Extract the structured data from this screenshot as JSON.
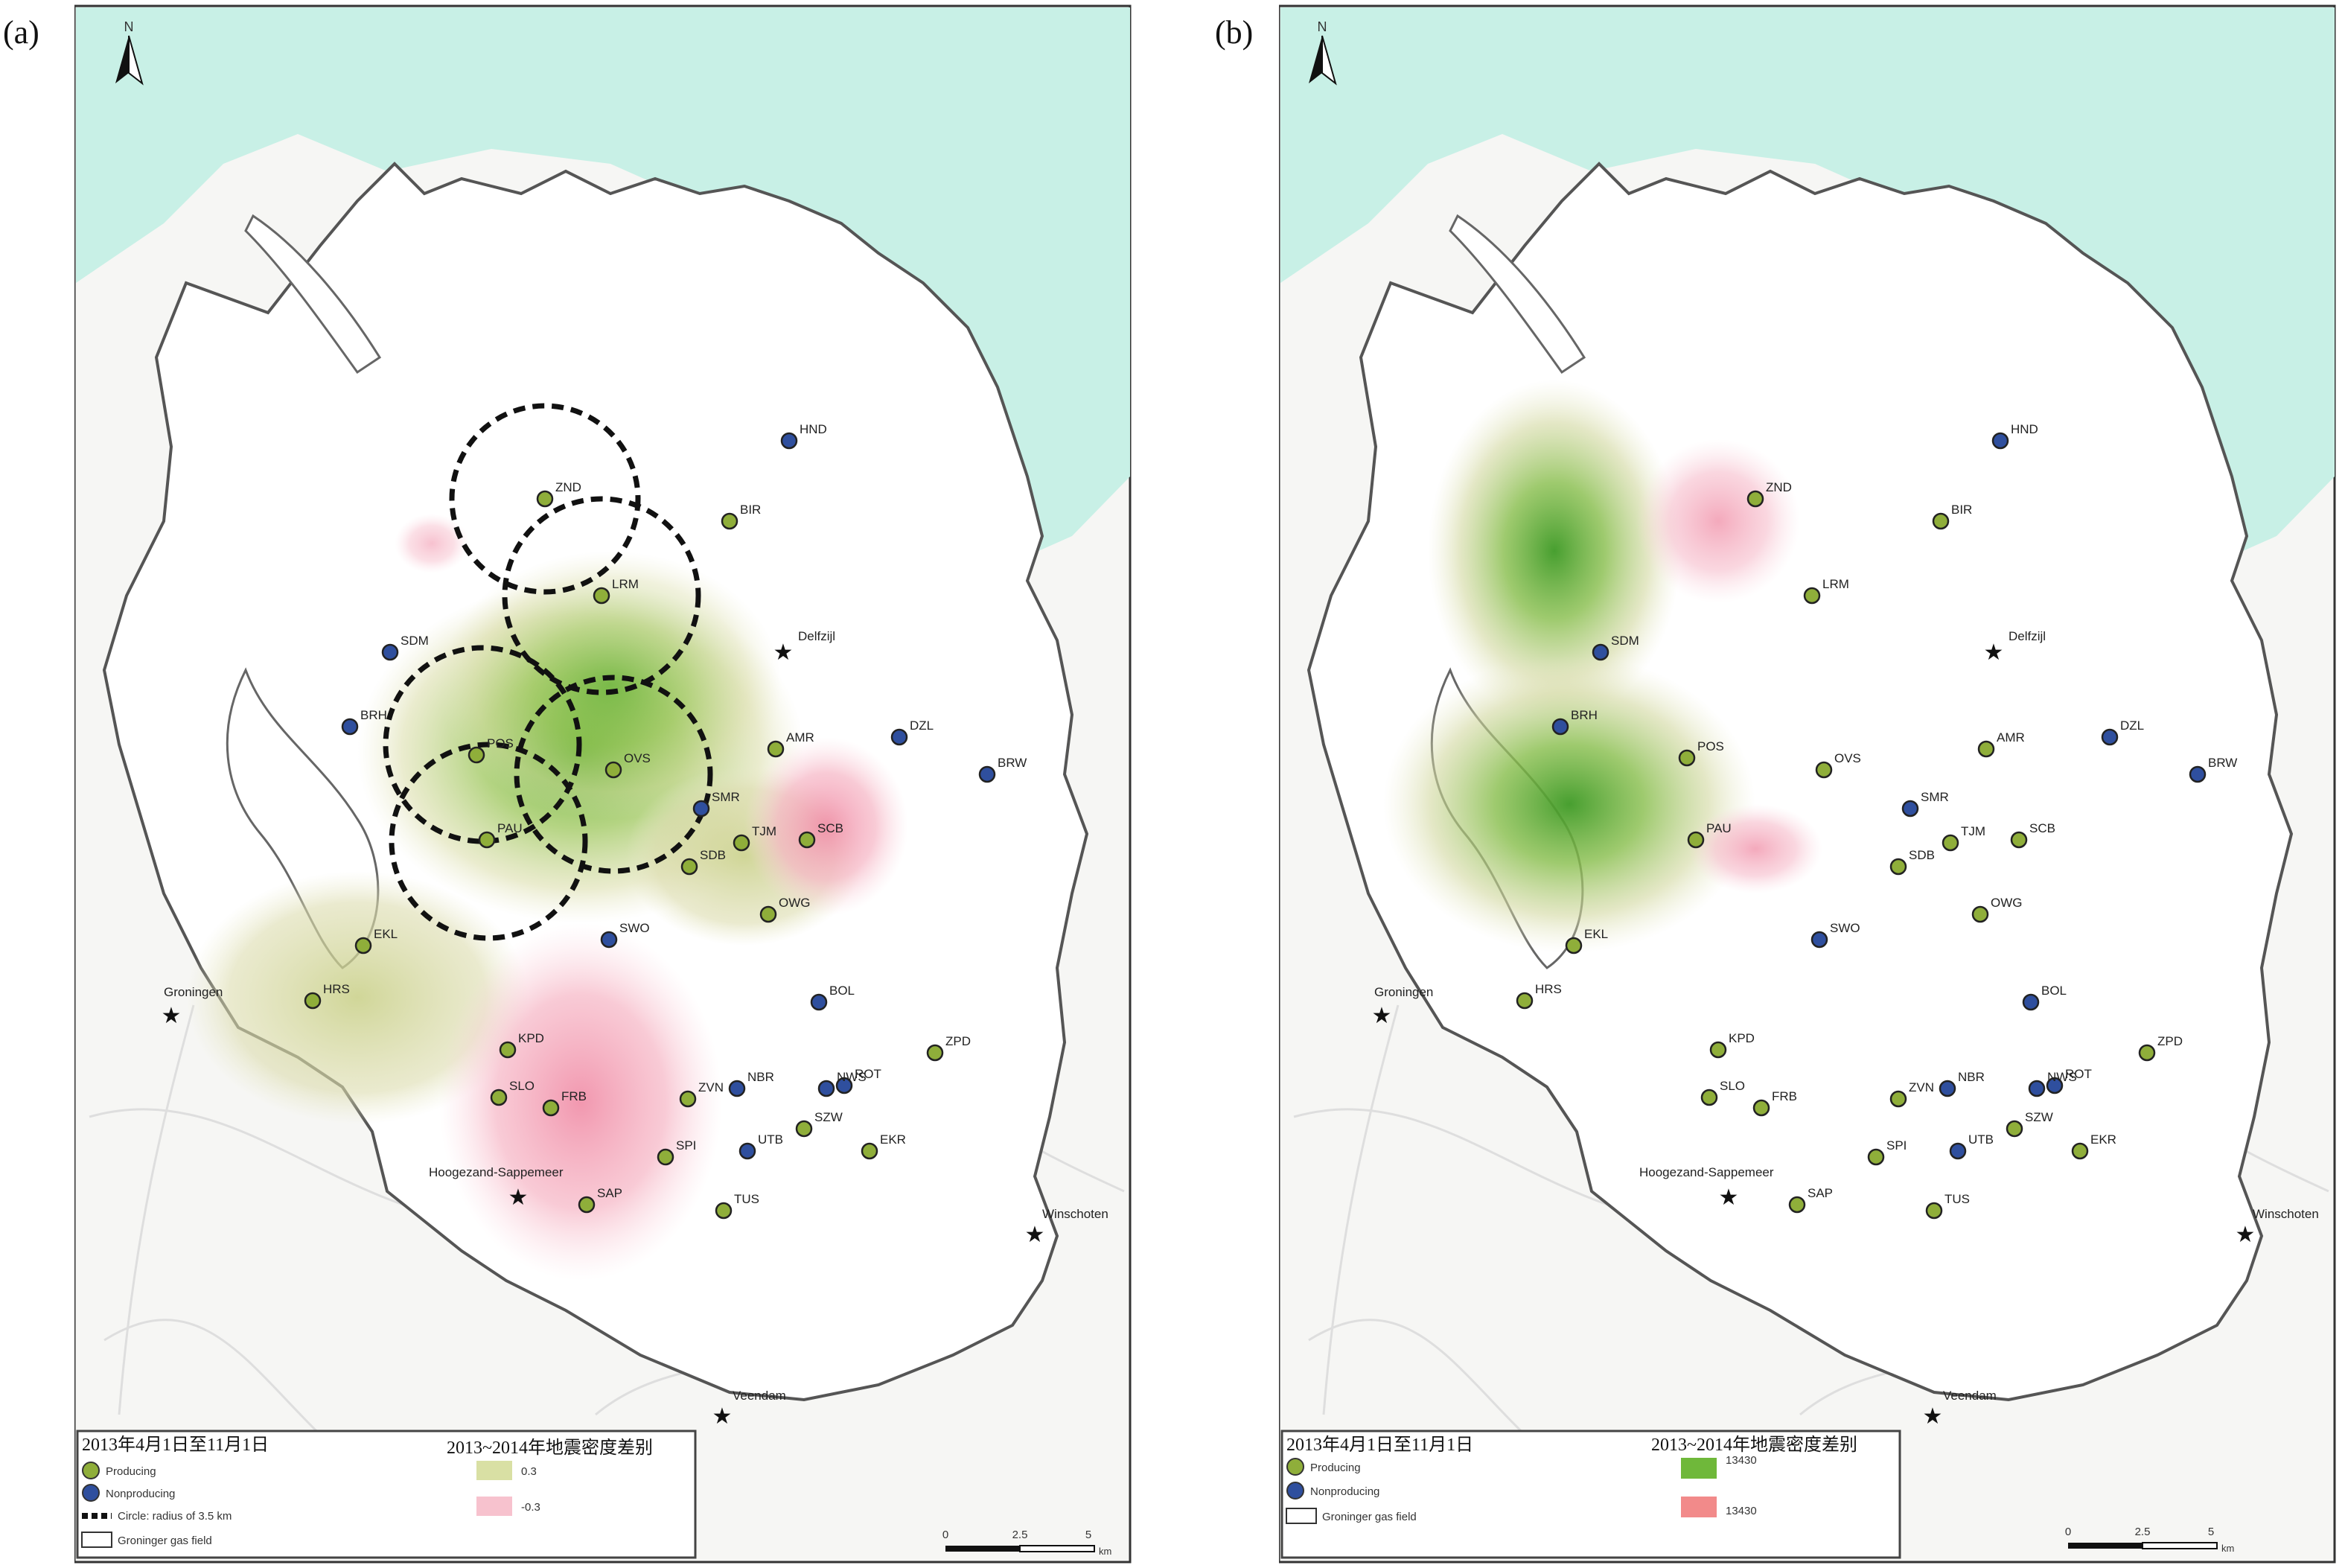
{
  "panels": [
    {
      "label": "(a)",
      "legend": {
        "left_title": "2013年4月1日至11月1日",
        "right_title": "2013~2014年地震密度差别",
        "items": [
          "Producing",
          "Nonproducing",
          "Circle: radius of 3.5 km",
          "Groninger gas field"
        ],
        "density_items": [
          "0.3",
          "-0.3"
        ],
        "scale_ticks": [
          "0",
          "2.5",
          "5"
        ],
        "scale_unit": "km"
      }
    },
    {
      "label": "(b)",
      "legend": {
        "left_title": "2013年4月1日至11月1日",
        "right_title": "2013~2014年地震密度差别",
        "items": [
          "Producing",
          "Nonproducing",
          "Groninger gas field"
        ],
        "density_items": [
          "13430",
          "13430"
        ],
        "scale_ticks": [
          "0",
          "2.5",
          "5"
        ],
        "scale_unit": "km"
      }
    }
  ],
  "north_symbol": "N",
  "cities": [
    "Groningen",
    "Hoogezand-Sappemeer",
    "Delfzijl",
    "Winschoten",
    "Veendam"
  ],
  "stations": [
    {
      "code": "HND",
      "status": "nonproducing"
    },
    {
      "code": "ZND",
      "status": "producing"
    },
    {
      "code": "BIR",
      "status": "producing"
    },
    {
      "code": "LRM",
      "status": "producing"
    },
    {
      "code": "SDM",
      "status": "nonproducing"
    },
    {
      "code": "BRH",
      "status": "nonproducing"
    },
    {
      "code": "POS",
      "status": "producing"
    },
    {
      "code": "OVS",
      "status": "producing"
    },
    {
      "code": "AMR",
      "status": "producing"
    },
    {
      "code": "DZL",
      "status": "nonproducing"
    },
    {
      "code": "BRW",
      "status": "nonproducing"
    },
    {
      "code": "SMR",
      "status": "nonproducing"
    },
    {
      "code": "PAU",
      "status": "producing"
    },
    {
      "code": "TJM",
      "status": "producing"
    },
    {
      "code": "SCB",
      "status": "producing"
    },
    {
      "code": "SDB",
      "status": "producing"
    },
    {
      "code": "OWG",
      "status": "producing"
    },
    {
      "code": "SWO",
      "status": "nonproducing"
    },
    {
      "code": "EKL",
      "status": "producing"
    },
    {
      "code": "HRS",
      "status": "producing"
    },
    {
      "code": "BOL",
      "status": "nonproducing"
    },
    {
      "code": "KPD",
      "status": "producing"
    },
    {
      "code": "ZPD",
      "status": "producing"
    },
    {
      "code": "SLO",
      "status": "producing"
    },
    {
      "code": "FRB",
      "status": "producing"
    },
    {
      "code": "ZVN",
      "status": "producing"
    },
    {
      "code": "NBR",
      "status": "nonproducing"
    },
    {
      "code": "ROT",
      "status": "nonproducing"
    },
    {
      "code": "NWS",
      "status": "nonproducing"
    },
    {
      "code": "SZW",
      "status": "producing"
    },
    {
      "code": "SPI",
      "status": "producing"
    },
    {
      "code": "UTB",
      "status": "nonproducing"
    },
    {
      "code": "EKR",
      "status": "producing"
    },
    {
      "code": "SAP",
      "status": "producing"
    },
    {
      "code": "TUS",
      "status": "producing"
    }
  ],
  "colors": {
    "producing": "#8fae3a",
    "nonproducing": "#2f4f9e",
    "sea": "#c8f0e6",
    "land": "#f7f7f7",
    "positive_density": "#7dbb3a",
    "negative_density": "#f4a6b6"
  }
}
